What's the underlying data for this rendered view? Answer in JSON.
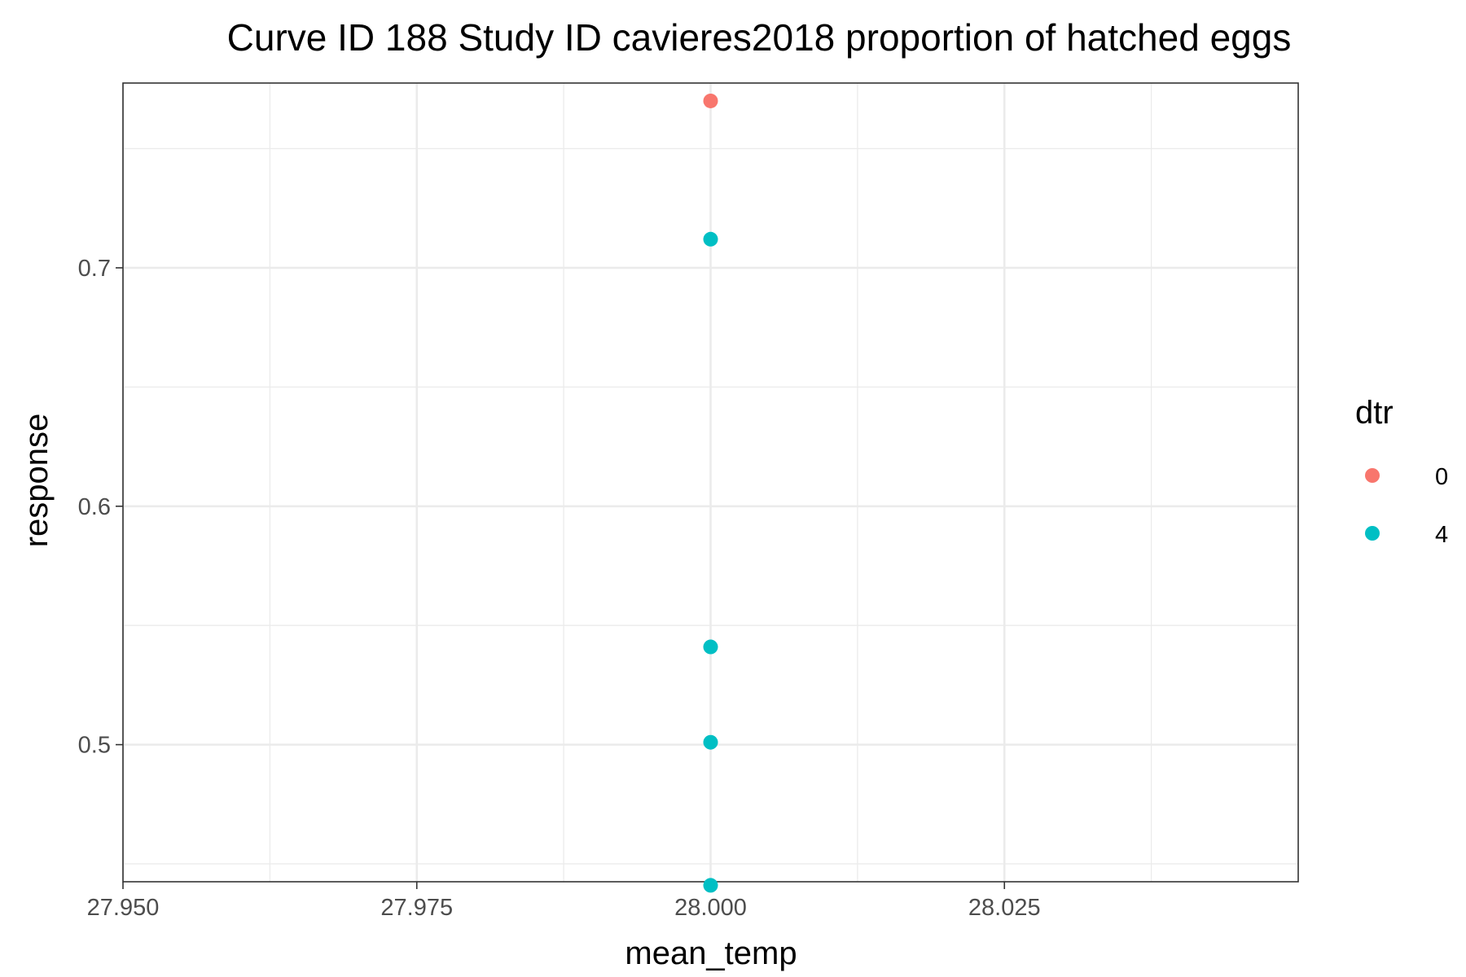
{
  "chart_data": {
    "type": "scatter",
    "title": "Curve ID 188 Study ID cavieres2018 proportion of hatched eggs",
    "xlabel": "mean_temp",
    "ylabel": "response",
    "xlim": [
      27.95,
      28.05
    ],
    "ylim": [
      0.4425,
      0.7775
    ],
    "x_ticks": [
      27.95,
      27.975,
      28.0,
      28.025
    ],
    "x_tick_labels": [
      "27.950",
      "27.975",
      "28.000",
      "28.025"
    ],
    "y_ticks": [
      0.5,
      0.6,
      0.7
    ],
    "y_tick_labels": [
      "0.5",
      "0.6",
      "0.7"
    ],
    "grid": true,
    "legend": {
      "title": "dtr",
      "placement": "right",
      "entries": [
        {
          "label": "0",
          "color": "#F8766D"
        },
        {
          "label": "4",
          "color": "#00BFC4"
        }
      ]
    },
    "series": [
      {
        "name": "0",
        "color": "#F8766D",
        "points": [
          [
            28.0,
            0.77
          ]
        ]
      },
      {
        "name": "4",
        "color": "#00BFC4",
        "points": [
          [
            28.0,
            0.712
          ],
          [
            28.0,
            0.541
          ],
          [
            28.0,
            0.501
          ],
          [
            28.0,
            0.441
          ]
        ]
      }
    ]
  }
}
